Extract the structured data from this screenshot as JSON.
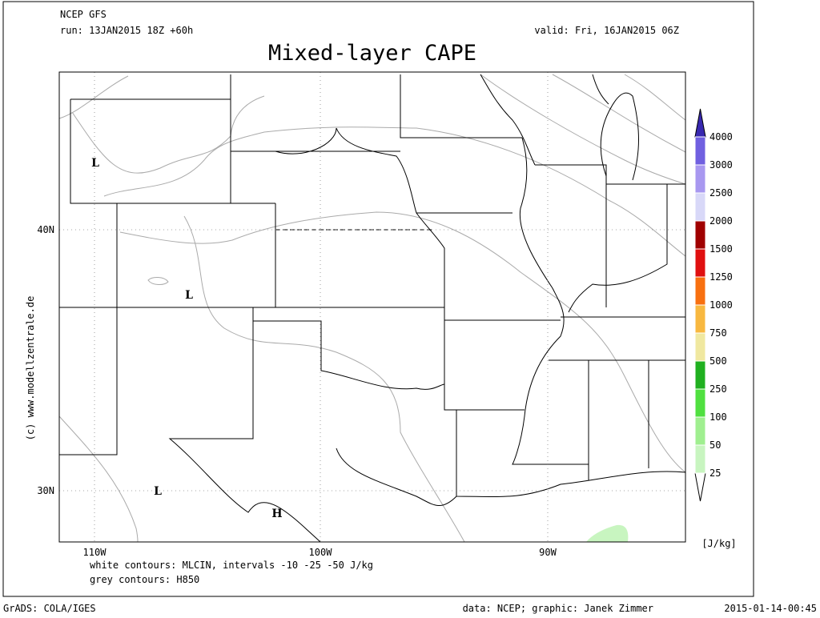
{
  "header": {
    "model": "NCEP GFS",
    "run": "run: 13JAN2015 18Z +60h",
    "valid": "valid: Fri, 16JAN2015 06Z",
    "title": "Mixed-layer CAPE"
  },
  "map": {
    "lat_labels": [
      "40N",
      "30N"
    ],
    "lon_labels": [
      "110W",
      "100W",
      "90W"
    ],
    "pressure_centers": [
      "L",
      "L",
      "L",
      "H"
    ],
    "credit": "(c) www.modellzentrale.de"
  },
  "notes": [
    "white contours: MLCIN, intervals -10 -25 -50 J/kg",
    "grey contours: H850"
  ],
  "colorbar": {
    "levels": [
      25,
      50,
      100,
      250,
      500,
      750,
      1000,
      1250,
      1500,
      2000,
      2500,
      3000,
      4000
    ],
    "colors": [
      "#ffffff",
      "#c8f5c0",
      "#a0ef90",
      "#50e040",
      "#20b020",
      "#f0e8a0",
      "#f8b840",
      "#f87010",
      "#e01010",
      "#a00000",
      "#d8d8f8",
      "#a898f0",
      "#7060e0",
      "#3828b0"
    ],
    "unit": "[J/kg]"
  },
  "footer": {
    "left": "GrADS: COLA/IGES",
    "center": "data: NCEP; graphic: Janek Zimmer",
    "right": "2015-01-14-00:45"
  }
}
